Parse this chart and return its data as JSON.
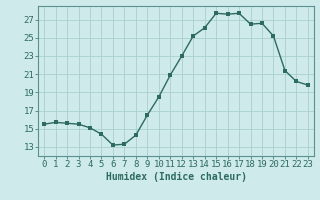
{
  "x": [
    0,
    1,
    2,
    3,
    4,
    5,
    6,
    7,
    8,
    9,
    10,
    11,
    12,
    13,
    14,
    15,
    16,
    17,
    18,
    19,
    20,
    21,
    22,
    23
  ],
  "y": [
    15.5,
    15.7,
    15.6,
    15.5,
    15.1,
    14.4,
    13.2,
    13.3,
    14.3,
    16.5,
    18.5,
    20.9,
    23.0,
    25.2,
    26.1,
    27.7,
    27.6,
    27.7,
    26.5,
    26.6,
    25.2,
    21.4,
    20.2,
    19.8
  ],
  "line_color": "#2d6b5e",
  "marker": "s",
  "marker_size": 2.2,
  "bg_color": "#ceeaea",
  "grid_color": "#aacfcf",
  "xlabel": "Humidex (Indice chaleur)",
  "ytick_labels": [
    "13",
    "15",
    "17",
    "19",
    "21",
    "23",
    "25",
    "27"
  ],
  "ytick_vals": [
    13,
    15,
    17,
    19,
    21,
    23,
    25,
    27
  ],
  "xlim": [
    -0.5,
    23.5
  ],
  "ylim": [
    12.0,
    28.5
  ],
  "xlabel_fontsize": 7,
  "tick_fontsize": 6.5,
  "line_width": 1.0,
  "spine_color": "#5a9090"
}
